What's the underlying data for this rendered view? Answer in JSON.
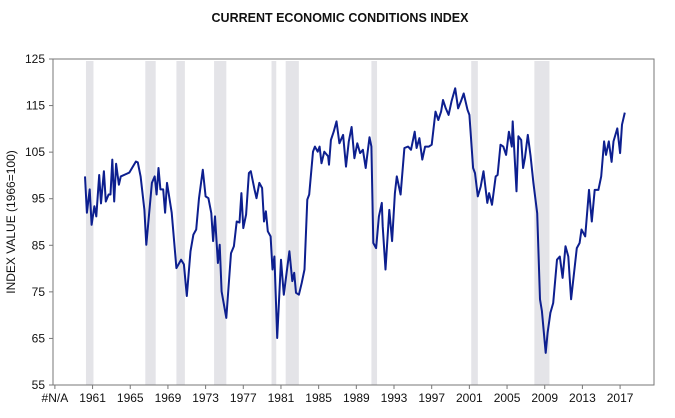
{
  "chart_data": {
    "type": "line",
    "title": "CURRENT ECONOMIC CONDITIONS INDEX",
    "xlabel": "",
    "ylabel": "INDEX VALUE (1966=100)",
    "ylim": [
      55,
      125
    ],
    "yticks": [
      55,
      65,
      75,
      85,
      95,
      105,
      115,
      125
    ],
    "xlim": [
      1956.8,
      2020.6
    ],
    "xticks": [
      {
        "value": 1957,
        "label": "#N/A"
      },
      {
        "value": 1961,
        "label": "1961"
      },
      {
        "value": 1965,
        "label": "1965"
      },
      {
        "value": 1969,
        "label": "1969"
      },
      {
        "value": 1973,
        "label": "1973"
      },
      {
        "value": 1977,
        "label": "1977"
      },
      {
        "value": 1981,
        "label": "1981"
      },
      {
        "value": 1985,
        "label": "1985"
      },
      {
        "value": 1989,
        "label": "1989"
      },
      {
        "value": 1993,
        "label": "1993"
      },
      {
        "value": 1997,
        "label": "1997"
      },
      {
        "value": 2001,
        "label": "2001"
      },
      {
        "value": 2005,
        "label": "2005"
      },
      {
        "value": 2009,
        "label": "2009"
      },
      {
        "value": 2013,
        "label": "2013"
      },
      {
        "value": 2017,
        "label": "2017"
      }
    ],
    "grid": false,
    "shaded_periods": [
      [
        1960.3,
        1961.1
      ],
      [
        1966.6,
        1967.7
      ],
      [
        1969.9,
        1970.8
      ],
      [
        1973.9,
        1975.2
      ],
      [
        1980.0,
        1980.5
      ],
      [
        1981.5,
        1982.9
      ],
      [
        1990.6,
        1991.2
      ],
      [
        2001.2,
        2001.9
      ],
      [
        2007.9,
        2009.5
      ]
    ],
    "series": [
      {
        "name": "Current Economic Conditions Index",
        "color": "#0d1f8f",
        "x": [
          1960.2,
          1960.4,
          1960.7,
          1960.9,
          1961.2,
          1961.4,
          1961.7,
          1961.9,
          1962.2,
          1962.4,
          1962.7,
          1962.9,
          1963.1,
          1963.3,
          1963.5,
          1963.8,
          1964.0,
          1964.9,
          1965.6,
          1965.8,
          1966.1,
          1966.5,
          1966.7,
          1967.3,
          1967.6,
          1967.8,
          1968.0,
          1968.2,
          1968.5,
          1968.7,
          1968.9,
          1969.4,
          1969.9,
          1970.4,
          1970.7,
          1971.0,
          1971.4,
          1971.7,
          1972.0,
          1972.3,
          1972.7,
          1973.0,
          1973.3,
          1973.6,
          1973.8,
          1974.0,
          1974.3,
          1974.5,
          1974.7,
          1975.2,
          1975.7,
          1976.0,
          1976.3,
          1976.6,
          1976.8,
          1977.0,
          1977.3,
          1977.6,
          1977.8,
          1978.2,
          1978.4,
          1978.7,
          1979.0,
          1979.2,
          1979.4,
          1979.6,
          1979.9,
          1980.1,
          1980.3,
          1980.6,
          1981.0,
          1981.3,
          1981.6,
          1981.9,
          1982.2,
          1982.4,
          1982.6,
          1982.9,
          1983.2,
          1983.5,
          1983.8,
          1984.0,
          1984.4,
          1984.6,
          1984.9,
          1985.1,
          1985.3,
          1985.6,
          1986.0,
          1986.1,
          1986.3,
          1986.6,
          1986.9,
          1987.2,
          1987.6,
          1987.9,
          1988.2,
          1988.5,
          1988.8,
          1989.1,
          1989.4,
          1989.7,
          1990.0,
          1990.1,
          1990.4,
          1990.6,
          1990.8,
          1991.1,
          1991.4,
          1991.7,
          1991.8,
          1992.1,
          1992.5,
          1992.8,
          1993.1,
          1993.3,
          1993.7,
          1994.1,
          1994.5,
          1994.8,
          1995.2,
          1995.4,
          1995.7,
          1996.0,
          1996.3,
          1996.7,
          1997.0,
          1997.4,
          1997.7,
          1998.0,
          1998.2,
          1998.5,
          1998.8,
          1999.1,
          1999.5,
          1999.8,
          2000.1,
          2000.4,
          2000.8,
          2001.0,
          2001.4,
          2001.6,
          2001.9,
          2002.2,
          2002.5,
          2002.9,
          2003.1,
          2003.4,
          2003.8,
          2004.0,
          2004.3,
          2004.6,
          2004.9,
          2005.2,
          2005.5,
          2005.6,
          2006.0,
          2006.2,
          2006.5,
          2006.7,
          2006.9,
          2007.2,
          2007.5,
          2007.8,
          2008.2,
          2008.5,
          2008.7,
          2009.1,
          2009.3,
          2009.6,
          2009.9,
          2010.3,
          2010.6,
          2010.9,
          2011.2,
          2011.5,
          2011.8,
          2012.4,
          2012.7,
          2012.9,
          2013.3,
          2013.7,
          2014.0,
          2014.3,
          2014.7,
          2015.0,
          2015.3,
          2015.5,
          2015.8,
          2016.1,
          2016.3,
          2016.7,
          2017.0,
          2017.2,
          2017.5
        ],
        "y": [
          99.8,
          92.0,
          97.0,
          89.4,
          93.4,
          91.2,
          100.1,
          94.0,
          100.9,
          94.4,
          95.9,
          95.9,
          103.4,
          94.4,
          102.5,
          98.0,
          99.8,
          100.6,
          103.0,
          102.8,
          99.8,
          92.6,
          85.1,
          98.4,
          99.8,
          95.9,
          101.6,
          97.0,
          97.0,
          92.0,
          98.4,
          92.0,
          80.1,
          81.9,
          80.9,
          74.1,
          83.7,
          87.3,
          88.4,
          95.1,
          101.2,
          95.5,
          95.1,
          91.9,
          85.9,
          91.2,
          81.2,
          85.1,
          75.1,
          69.4,
          83.3,
          84.8,
          90.1,
          89.9,
          96.2,
          88.7,
          91.6,
          100.5,
          100.9,
          96.9,
          95.1,
          98.4,
          97.3,
          90.1,
          92.3,
          88.0,
          86.9,
          79.8,
          82.6,
          65.1,
          81.9,
          74.4,
          79.1,
          83.7,
          77.3,
          79.1,
          74.8,
          74.4,
          76.9,
          79.8,
          94.8,
          95.9,
          105.1,
          106.2,
          105.1,
          106.2,
          102.6,
          105.1,
          104.1,
          102.3,
          107.6,
          109.4,
          111.6,
          106.9,
          108.7,
          101.9,
          107.3,
          110.4,
          103.7,
          106.9,
          104.8,
          105.5,
          101.6,
          103.4,
          108.2,
          106.2,
          85.5,
          84.4,
          91.2,
          94.1,
          89.1,
          79.8,
          92.6,
          85.9,
          96.2,
          99.8,
          95.9,
          105.9,
          106.2,
          105.5,
          109.4,
          105.9,
          108.0,
          103.4,
          106.2,
          106.2,
          106.6,
          113.7,
          111.9,
          113.7,
          116.2,
          114.4,
          113.0,
          115.9,
          118.7,
          114.4,
          115.9,
          117.6,
          114.1,
          113.0,
          101.6,
          100.5,
          95.5,
          97.6,
          100.9,
          94.1,
          96.2,
          93.7,
          99.8,
          100.1,
          106.6,
          106.2,
          104.4,
          109.4,
          106.2,
          111.6,
          96.6,
          108.4,
          107.6,
          101.6,
          103.7,
          108.7,
          104.1,
          98.4,
          91.9,
          73.4,
          70.9,
          61.9,
          66.2,
          70.5,
          72.6,
          81.9,
          82.6,
          78.0,
          84.8,
          82.6,
          73.4,
          84.4,
          85.5,
          88.4,
          86.9,
          96.9,
          90.1,
          96.9,
          96.9,
          99.8,
          107.3,
          104.4,
          107.3,
          102.9,
          107.3,
          110.1,
          104.8,
          110.9,
          113.5
        ]
      }
    ]
  }
}
